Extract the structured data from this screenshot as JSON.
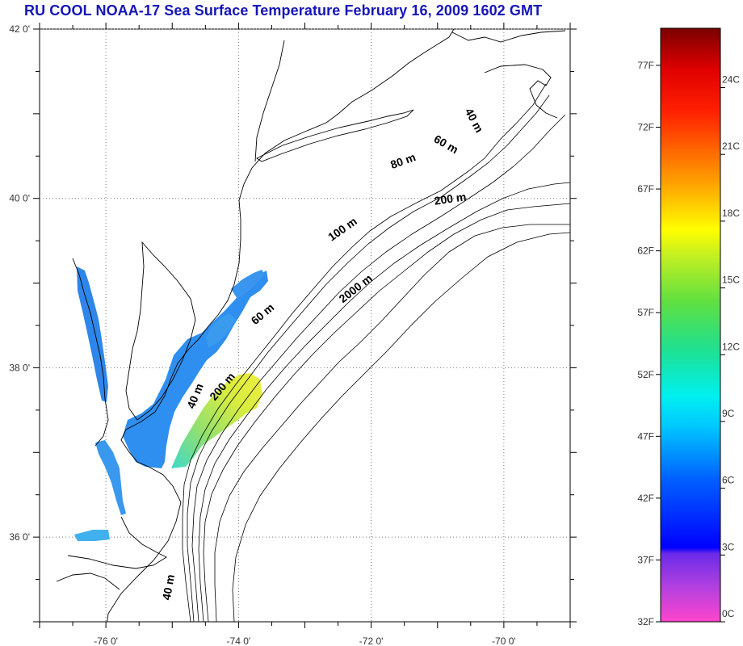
{
  "title": "RU COOL  NOAA-17 Sea Surface Temperature February 16, 2009 1602 GMT",
  "map": {
    "lon_range": [
      -77,
      -69
    ],
    "lat_range": [
      35,
      42
    ],
    "lat_ticks": [
      {
        "value": 42,
        "label": "42 0'"
      },
      {
        "value": 40,
        "label": "40 0'"
      },
      {
        "value": 38,
        "label": "38 0'"
      },
      {
        "value": 36,
        "label": "36 0'"
      }
    ],
    "lon_ticks": [
      {
        "value": -76,
        "label": "-76 0'"
      },
      {
        "value": -74,
        "label": "-74 0'"
      },
      {
        "value": -72,
        "label": "-72 0'"
      },
      {
        "value": -70,
        "label": "-70 0'"
      }
    ],
    "grid": "dotted",
    "colors": {
      "coastline": "#000000",
      "grid": "#777777",
      "cold_water": "#2d8cf0",
      "warm_water": "#dfee3a"
    },
    "isobath_labels": [
      {
        "text": "40 m",
        "lon": -70.5,
        "lat": 40.9,
        "rotate": 62
      },
      {
        "text": "60 m",
        "lon": -70.9,
        "lat": 40.6,
        "rotate": 30
      },
      {
        "text": "80 m",
        "lon": -71.5,
        "lat": 40.4,
        "rotate": -20
      },
      {
        "text": "200 m",
        "lon": -70.8,
        "lat": 39.95,
        "rotate": -8
      },
      {
        "text": "100 m",
        "lon": -72.4,
        "lat": 39.6,
        "rotate": -35
      },
      {
        "text": "2000 m",
        "lon": -72.2,
        "lat": 38.9,
        "rotate": -38
      },
      {
        "text": "60 m",
        "lon": -73.6,
        "lat": 38.6,
        "rotate": -40
      },
      {
        "text": "200 m",
        "lon": -74.2,
        "lat": 37.75,
        "rotate": -50
      },
      {
        "text": "40 m",
        "lon": -74.6,
        "lat": 37.65,
        "rotate": -68
      },
      {
        "text": "40 m",
        "lon": -75.0,
        "lat": 35.4,
        "rotate": -80
      }
    ]
  },
  "color_scale": {
    "min_f": 32,
    "max_f": 80,
    "fahrenheit_labels": [
      "77F",
      "72F",
      "67F",
      "62F",
      "57F",
      "52F",
      "47F",
      "42F",
      "37F",
      "32F"
    ],
    "fahrenheit_values": [
      77,
      72,
      67,
      62,
      57,
      52,
      47,
      42,
      37,
      32
    ],
    "celsius_labels": [
      "24C",
      "21C",
      "18C",
      "15C",
      "12C",
      "9C",
      "6C",
      "3C",
      "0C"
    ],
    "celsius_values": [
      24,
      21,
      18,
      15,
      12,
      9,
      6,
      3,
      0
    ],
    "colors": [
      "#ff33cc",
      "#8a2be2",
      "#0000ff",
      "#00c8ff",
      "#00ffe0",
      "#33dd55",
      "#ffff00",
      "#ff8800",
      "#ff0000",
      "#8b0000"
    ]
  }
}
